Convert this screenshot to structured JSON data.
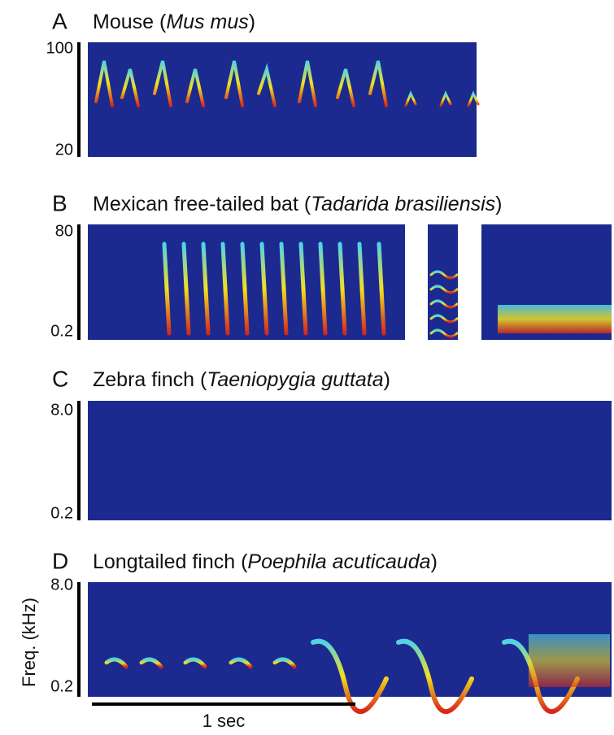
{
  "panels": [
    {
      "letter": "A",
      "title_prefix": "Mouse (",
      "species": "Mus mus",
      "title_suffix": ")",
      "ticks": [
        "100",
        "20"
      ]
    },
    {
      "letter": "B",
      "title_prefix": "Mexican free-tailed bat (",
      "species": "Tadarida brasiliensis",
      "title_suffix": ")",
      "ticks": [
        "80",
        "0.2"
      ]
    },
    {
      "letter": "C",
      "title_prefix": "Zebra finch (",
      "species": "Taeniopygia guttata",
      "title_suffix": ")",
      "ticks": [
        "8.0",
        "0.2"
      ]
    },
    {
      "letter": "D",
      "title_prefix": "Longtailed finch (",
      "species": "Poephila acuticauda",
      "title_suffix": ")",
      "ticks": [
        "8.0",
        "0.2"
      ]
    }
  ],
  "y_axis_label": "Freq. (kHz)",
  "scale_bar_label": "1 sec"
}
